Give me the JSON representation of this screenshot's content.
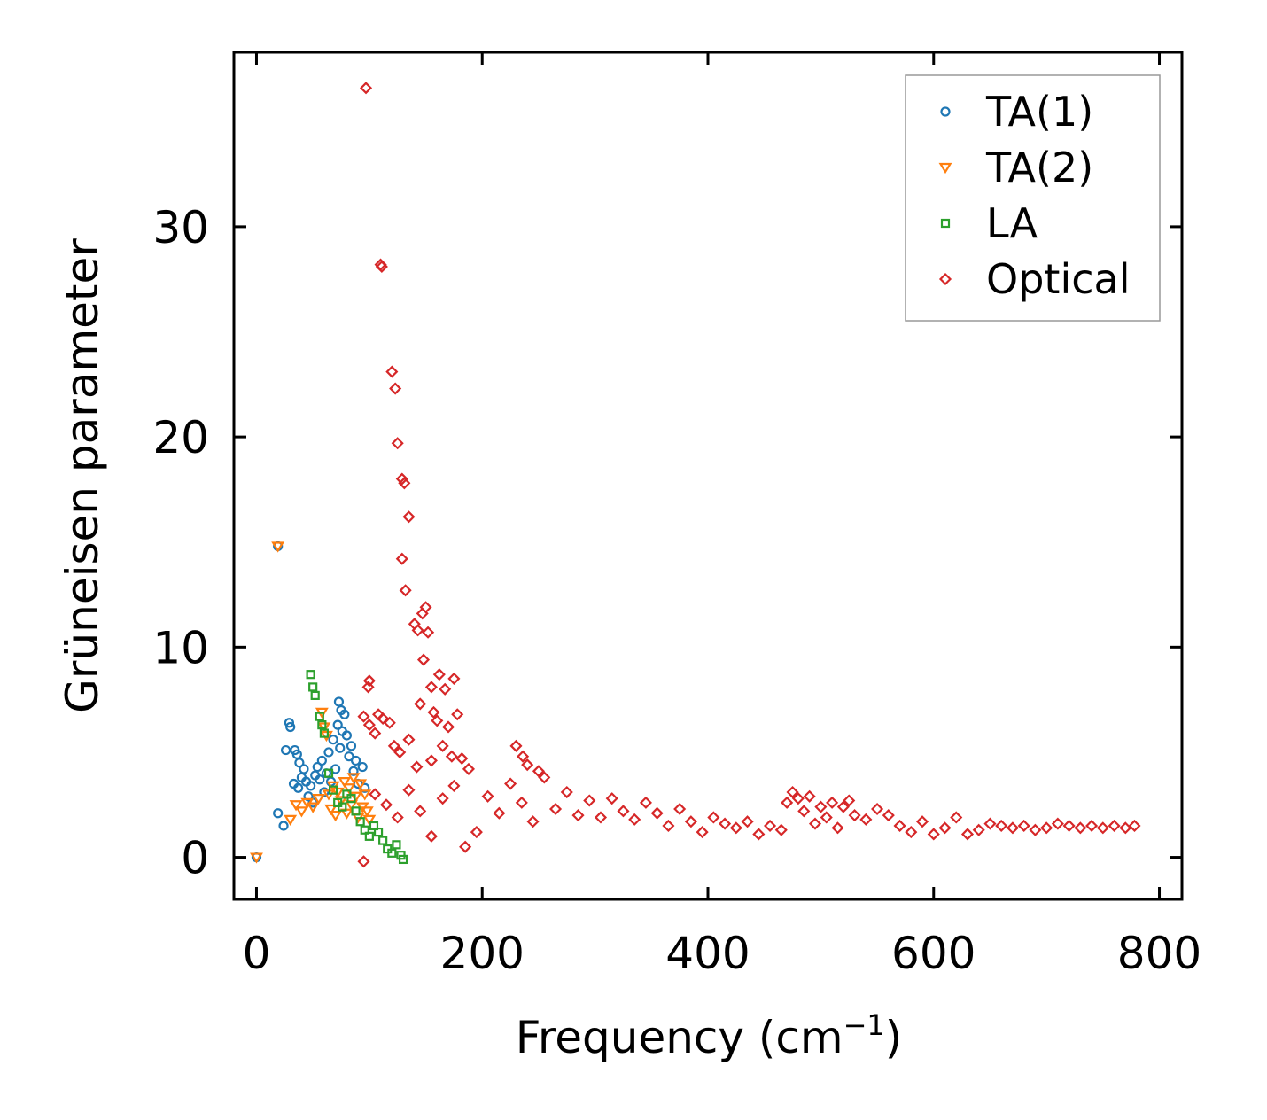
{
  "chart_data": {
    "type": "scatter",
    "xlabel": "Frequency (cm",
    "xlabel_sup": "−1",
    "xlabel_tail": ")",
    "ylabel": "Grüneisen parameter",
    "xlim": [
      -20,
      820
    ],
    "ylim": [
      -2,
      38.3
    ],
    "xticks": [
      0,
      200,
      400,
      600,
      800
    ],
    "yticks": [
      0,
      10,
      20,
      30
    ],
    "legend_position": "top-right",
    "series": [
      {
        "name": "TA(1)",
        "marker": "circle",
        "color": "#1f77b4",
        "points": [
          [
            0,
            0
          ],
          [
            19,
            14.8
          ],
          [
            19,
            2.1
          ],
          [
            24,
            1.5
          ],
          [
            26,
            5.1
          ],
          [
            29,
            6.4
          ],
          [
            30,
            6.2
          ],
          [
            33,
            3.5
          ],
          [
            34,
            5.1
          ],
          [
            36,
            4.9
          ],
          [
            37,
            3.3
          ],
          [
            38,
            4.5
          ],
          [
            40,
            3.8
          ],
          [
            42,
            4.2
          ],
          [
            44,
            3.6
          ],
          [
            46,
            2.9
          ],
          [
            48,
            3.4
          ],
          [
            50,
            2.6
          ],
          [
            52,
            3.9
          ],
          [
            54,
            4.3
          ],
          [
            56,
            3.7
          ],
          [
            58,
            4.6
          ],
          [
            60,
            3.1
          ],
          [
            62,
            4.0
          ],
          [
            64,
            5.0
          ],
          [
            66,
            3.6
          ],
          [
            68,
            5.6
          ],
          [
            70,
            4.2
          ],
          [
            72,
            6.3
          ],
          [
            73,
            7.4
          ],
          [
            74,
            5.2
          ],
          [
            75,
            7.0
          ],
          [
            76,
            6.0
          ],
          [
            78,
            6.8
          ],
          [
            80,
            5.8
          ],
          [
            82,
            4.8
          ],
          [
            84,
            5.3
          ],
          [
            86,
            4.1
          ],
          [
            88,
            4.6
          ],
          [
            90,
            3.5
          ],
          [
            94,
            4.3
          ],
          [
            96,
            3.3
          ]
        ]
      },
      {
        "name": "TA(2)",
        "marker": "triangle-down",
        "color": "#ff7f0e",
        "points": [
          [
            0,
            0
          ],
          [
            19,
            14.8
          ],
          [
            30,
            1.8
          ],
          [
            35,
            2.5
          ],
          [
            40,
            2.2
          ],
          [
            45,
            2.6
          ],
          [
            50,
            2.4
          ],
          [
            55,
            2.8
          ],
          [
            58,
            6.9
          ],
          [
            60,
            6.2
          ],
          [
            62,
            5.8
          ],
          [
            64,
            3.0
          ],
          [
            66,
            2.3
          ],
          [
            68,
            3.4
          ],
          [
            70,
            2.0
          ],
          [
            72,
            3.1
          ],
          [
            75,
            2.7
          ],
          [
            78,
            3.6
          ],
          [
            80,
            2.1
          ],
          [
            82,
            3.3
          ],
          [
            84,
            2.5
          ],
          [
            86,
            3.8
          ],
          [
            88,
            2.9
          ],
          [
            90,
            1.9
          ],
          [
            92,
            3.5
          ],
          [
            94,
            2.4
          ],
          [
            96,
            3.0
          ],
          [
            98,
            2.2
          ],
          [
            100,
            1.8
          ]
        ]
      },
      {
        "name": "LA",
        "marker": "square",
        "color": "#2ca02c",
        "points": [
          [
            48,
            8.7
          ],
          [
            50,
            8.1
          ],
          [
            52,
            7.7
          ],
          [
            56,
            6.7
          ],
          [
            58,
            6.3
          ],
          [
            60,
            5.9
          ],
          [
            64,
            4.0
          ],
          [
            68,
            3.2
          ],
          [
            72,
            2.6
          ],
          [
            76,
            2.4
          ],
          [
            80,
            3.0
          ],
          [
            84,
            2.8
          ],
          [
            88,
            2.2
          ],
          [
            92,
            1.7
          ],
          [
            96,
            1.3
          ],
          [
            100,
            1.0
          ],
          [
            104,
            1.5
          ],
          [
            108,
            1.2
          ],
          [
            112,
            0.8
          ],
          [
            116,
            0.4
          ],
          [
            120,
            0.2
          ],
          [
            124,
            0.6
          ],
          [
            128,
            0.1
          ],
          [
            130,
            -0.1
          ]
        ]
      },
      {
        "name": "Optical",
        "marker": "diamond",
        "color": "#d62728",
        "points": [
          [
            97,
            36.6
          ],
          [
            110,
            28.2
          ],
          [
            111,
            28.1
          ],
          [
            120,
            23.1
          ],
          [
            123,
            22.3
          ],
          [
            125,
            19.7
          ],
          [
            129,
            18.0
          ],
          [
            131,
            17.8
          ],
          [
            135,
            16.2
          ],
          [
            129,
            14.2
          ],
          [
            132,
            12.7
          ],
          [
            140,
            11.1
          ],
          [
            143,
            10.8
          ],
          [
            147,
            11.6
          ],
          [
            150,
            11.9
          ],
          [
            152,
            10.7
          ],
          [
            148,
            9.4
          ],
          [
            155,
            8.1
          ],
          [
            162,
            8.7
          ],
          [
            167,
            8.0
          ],
          [
            175,
            8.5
          ],
          [
            145,
            7.3
          ],
          [
            157,
            6.9
          ],
          [
            160,
            6.5
          ],
          [
            170,
            6.2
          ],
          [
            178,
            6.8
          ],
          [
            99,
            8.1
          ],
          [
            100,
            8.4
          ],
          [
            95,
            6.7
          ],
          [
            100,
            6.3
          ],
          [
            105,
            5.9
          ],
          [
            108,
            6.8
          ],
          [
            112,
            6.6
          ],
          [
            118,
            6.4
          ],
          [
            122,
            5.3
          ],
          [
            127,
            5.0
          ],
          [
            135,
            5.6
          ],
          [
            142,
            4.3
          ],
          [
            155,
            4.6
          ],
          [
            165,
            5.3
          ],
          [
            173,
            4.8
          ],
          [
            182,
            4.7
          ],
          [
            188,
            4.2
          ],
          [
            230,
            5.3
          ],
          [
            236,
            4.8
          ],
          [
            240,
            4.4
          ],
          [
            250,
            4.1
          ],
          [
            95,
            -0.2
          ],
          [
            105,
            3.0
          ],
          [
            115,
            2.5
          ],
          [
            125,
            1.9
          ],
          [
            135,
            3.2
          ],
          [
            145,
            2.2
          ],
          [
            155,
            1.0
          ],
          [
            165,
            2.8
          ],
          [
            175,
            3.4
          ],
          [
            185,
            0.5
          ],
          [
            195,
            1.2
          ],
          [
            205,
            2.9
          ],
          [
            215,
            2.1
          ],
          [
            225,
            3.5
          ],
          [
            235,
            2.6
          ],
          [
            245,
            1.7
          ],
          [
            255,
            3.8
          ],
          [
            265,
            2.3
          ],
          [
            275,
            3.1
          ],
          [
            285,
            2.0
          ],
          [
            295,
            2.7
          ],
          [
            305,
            1.9
          ],
          [
            315,
            2.8
          ],
          [
            325,
            2.2
          ],
          [
            335,
            1.8
          ],
          [
            345,
            2.6
          ],
          [
            355,
            2.1
          ],
          [
            365,
            1.5
          ],
          [
            375,
            2.3
          ],
          [
            385,
            1.7
          ],
          [
            395,
            1.2
          ],
          [
            405,
            1.9
          ],
          [
            415,
            1.6
          ],
          [
            425,
            1.4
          ],
          [
            435,
            1.7
          ],
          [
            445,
            1.1
          ],
          [
            455,
            1.5
          ],
          [
            465,
            1.3
          ],
          [
            470,
            2.6
          ],
          [
            475,
            3.1
          ],
          [
            480,
            2.8
          ],
          [
            485,
            2.2
          ],
          [
            490,
            2.9
          ],
          [
            495,
            1.6
          ],
          [
            500,
            2.4
          ],
          [
            505,
            1.9
          ],
          [
            510,
            2.6
          ],
          [
            515,
            1.4
          ],
          [
            520,
            2.4
          ],
          [
            525,
            2.7
          ],
          [
            530,
            2.0
          ],
          [
            540,
            1.8
          ],
          [
            550,
            2.3
          ],
          [
            560,
            2.0
          ],
          [
            570,
            1.5
          ],
          [
            580,
            1.2
          ],
          [
            590,
            1.7
          ],
          [
            600,
            1.1
          ],
          [
            610,
            1.4
          ],
          [
            620,
            1.9
          ],
          [
            630,
            1.1
          ],
          [
            640,
            1.3
          ],
          [
            650,
            1.6
          ],
          [
            660,
            1.5
          ],
          [
            670,
            1.4
          ],
          [
            680,
            1.5
          ],
          [
            690,
            1.3
          ],
          [
            700,
            1.4
          ],
          [
            710,
            1.6
          ],
          [
            720,
            1.5
          ],
          [
            730,
            1.4
          ],
          [
            740,
            1.5
          ],
          [
            750,
            1.4
          ],
          [
            760,
            1.5
          ],
          [
            770,
            1.4
          ],
          [
            778,
            1.5
          ]
        ]
      }
    ]
  }
}
